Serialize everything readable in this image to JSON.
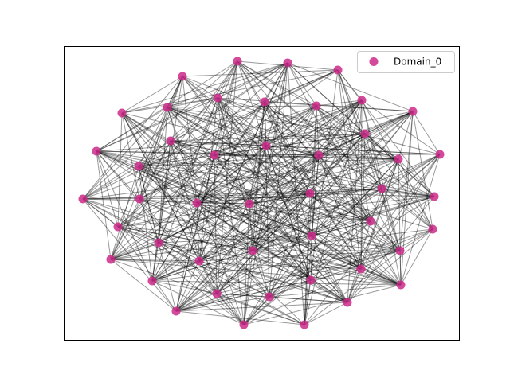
{
  "legend": {
    "label": "Domain_0"
  }
}
